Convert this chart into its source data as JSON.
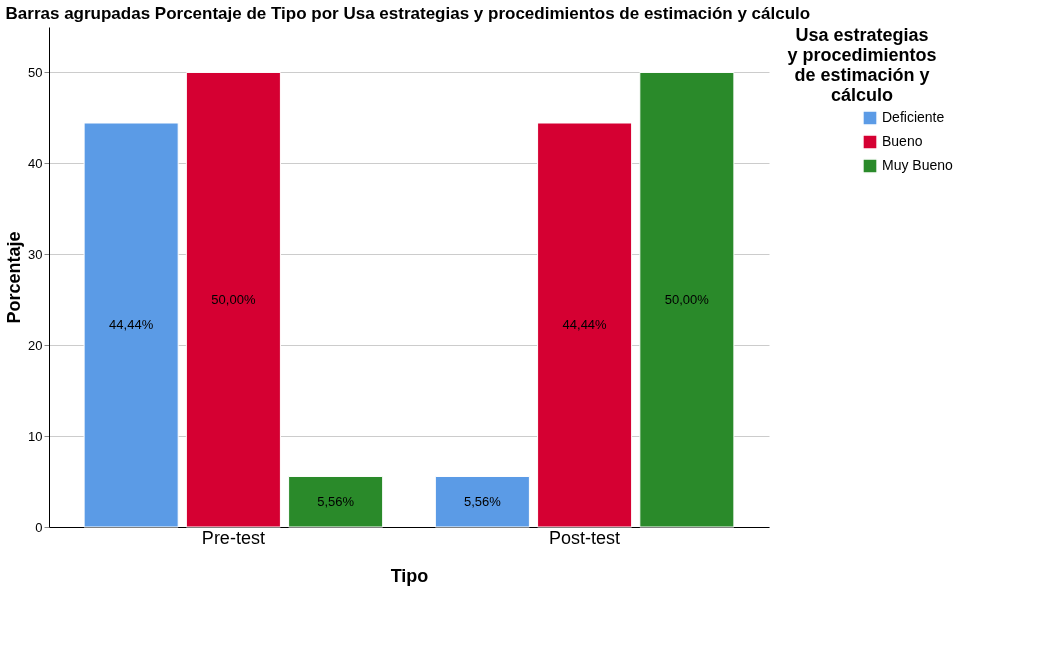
{
  "chart_data": {
    "type": "bar",
    "title": "Barras agrupadas Porcentaje de Tipo por Usa estrategias y procedimientos de estimación y cálculo",
    "xlabel": "Tipo",
    "ylabel": "Porcentaje",
    "legend_title": "Usa estrategias y procedimientos de estimación y cálculo",
    "categories": [
      "Pre-test",
      "Post-test"
    ],
    "series": [
      {
        "name": "Deficiente",
        "color": "#5b9be6",
        "values": [
          44.44,
          5.56
        ],
        "value_labels": [
          "44,44%",
          "5,56%"
        ]
      },
      {
        "name": "Bueno",
        "color": "#d50032",
        "values": [
          50.0,
          44.44
        ],
        "value_labels": [
          "50,00%",
          "44,44%"
        ]
      },
      {
        "name": "Muy Bueno",
        "color": "#2a8a2a",
        "values": [
          5.56,
          50.0
        ],
        "value_labels": [
          "5,56%",
          "50,00%"
        ]
      }
    ],
    "ylim": [
      0,
      55
    ],
    "yticks": [
      0,
      10,
      20,
      30,
      40,
      50
    ],
    "grid": "y",
    "legend": "top right"
  }
}
